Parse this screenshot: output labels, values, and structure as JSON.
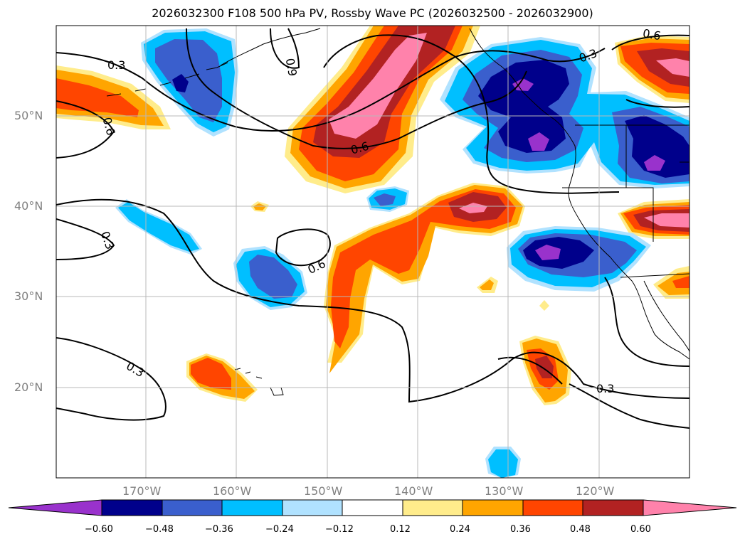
{
  "title": "2026032300 F108 500 hPa PV, Rossby Wave PC (2026032500 - 2026032900)",
  "lat_labels": [
    "50°N",
    "40°N",
    "30°N",
    "20°N"
  ],
  "lon_labels": [
    "170°W",
    "160°W",
    "150°W",
    "140°W",
    "130°W",
    "120°W"
  ],
  "contour_labels": [
    "0.3",
    "0.6",
    "0.9",
    "0.6",
    "0.3",
    "0.6",
    "0.3",
    "0.3",
    "0.3",
    "0.6"
  ],
  "colorbar": {
    "ticks": [
      "−0.60",
      "−0.48",
      "−0.36",
      "−0.24",
      "−0.12",
      "0.12",
      "0.24",
      "0.36",
      "0.48",
      "0.60"
    ],
    "colors": [
      "#9932cc",
      "#00008b",
      "#3a5fcd",
      "#00bfff",
      "#b0e2ff",
      "#ffffff",
      "#ffec8b",
      "#ffa500",
      "#ff4500",
      "#b22222",
      "#ff82ab"
    ]
  }
}
